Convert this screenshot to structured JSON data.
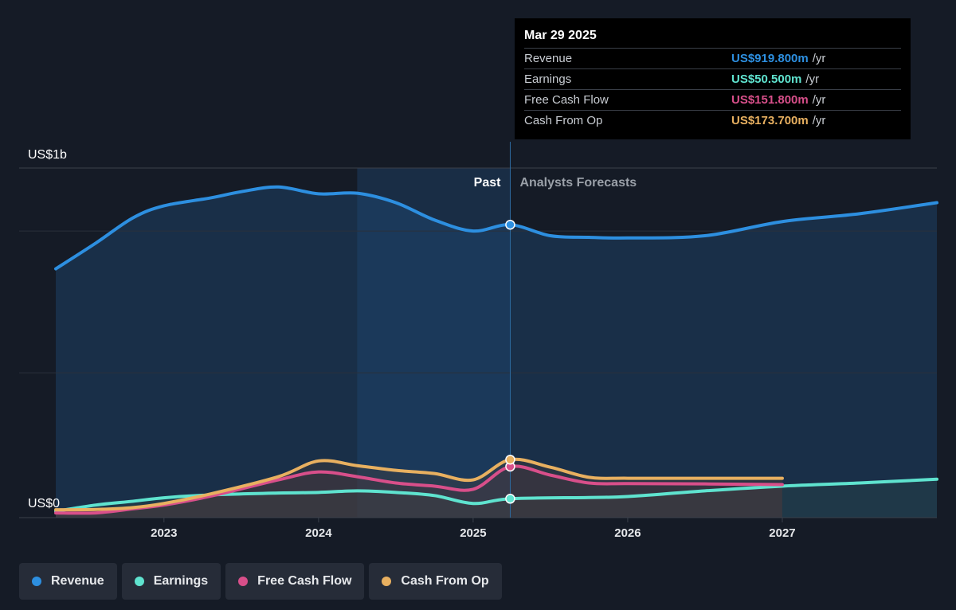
{
  "tooltip": {
    "date": "Mar 29 2025",
    "rows": [
      {
        "label": "Revenue",
        "value": "US$919.800m",
        "unit": "/yr",
        "color": "#2d8fe0"
      },
      {
        "label": "Earnings",
        "value": "US$50.500m",
        "unit": "/yr",
        "color": "#5fe3cf"
      },
      {
        "label": "Free Cash Flow",
        "value": "US$151.800m",
        "unit": "/yr",
        "color": "#d84f8a"
      },
      {
        "label": "Cash From Op",
        "value": "US$173.700m",
        "unit": "/yr",
        "color": "#e8b060"
      }
    ]
  },
  "legend": [
    {
      "label": "Revenue",
      "color": "#2d8fe0"
    },
    {
      "label": "Earnings",
      "color": "#5fe3cf"
    },
    {
      "label": "Free Cash Flow",
      "color": "#d84f8a"
    },
    {
      "label": "Cash From Op",
      "color": "#e8b060"
    }
  ],
  "chart_data": {
    "type": "line",
    "y_top_label": "US$1b",
    "y_zero_label": "US$0",
    "past_label": "Past",
    "forecast_label": "Analysts Forecasts",
    "xlim": [
      2022.3,
      2028.0
    ],
    "ylim": [
      -10,
      1100
    ],
    "x_ticks": [
      2023,
      2024,
      2025,
      2026,
      2027
    ],
    "x_tick_labels": [
      "2023",
      "2024",
      "2025",
      "2026",
      "2027"
    ],
    "forecast_start": 2025.24,
    "highlight_band": [
      2024.25,
      2025.24
    ],
    "series": [
      {
        "name": "Revenue",
        "color": "#2d8fe0",
        "marker_at": 2025.24,
        "points": [
          [
            2022.3,
            780
          ],
          [
            2022.56,
            862
          ],
          [
            2022.8,
            942
          ],
          [
            2023.0,
            980
          ],
          [
            2023.3,
            1005
          ],
          [
            2023.5,
            1025
          ],
          [
            2023.74,
            1040
          ],
          [
            2024.0,
            1018
          ],
          [
            2024.25,
            1020
          ],
          [
            2024.5,
            990
          ],
          [
            2024.75,
            935
          ],
          [
            2025.0,
            900
          ],
          [
            2025.24,
            920
          ],
          [
            2025.5,
            885
          ],
          [
            2025.75,
            880
          ],
          [
            2026.0,
            878
          ],
          [
            2026.5,
            885
          ],
          [
            2027.0,
            930
          ],
          [
            2027.5,
            955
          ],
          [
            2028.0,
            990
          ]
        ]
      },
      {
        "name": "Earnings",
        "color": "#5fe3cf",
        "marker_at": 2025.24,
        "points": [
          [
            2022.3,
            10
          ],
          [
            2022.56,
            30
          ],
          [
            2022.8,
            42
          ],
          [
            2023.0,
            53
          ],
          [
            2023.3,
            62
          ],
          [
            2023.74,
            68
          ],
          [
            2024.0,
            70
          ],
          [
            2024.25,
            75
          ],
          [
            2024.5,
            70
          ],
          [
            2024.75,
            60
          ],
          [
            2025.0,
            35
          ],
          [
            2025.24,
            50
          ],
          [
            2025.75,
            54
          ],
          [
            2026.0,
            57
          ],
          [
            2026.5,
            75
          ],
          [
            2027.0,
            90
          ],
          [
            2027.5,
            100
          ],
          [
            2028.0,
            112
          ]
        ]
      },
      {
        "name": "Free Cash Flow",
        "color": "#d84f8a",
        "marker_at": 2025.24,
        "points": [
          [
            2022.3,
            5
          ],
          [
            2022.56,
            5
          ],
          [
            2022.8,
            18
          ],
          [
            2023.0,
            30
          ],
          [
            2023.3,
            58
          ],
          [
            2023.74,
            110
          ],
          [
            2024.0,
            135
          ],
          [
            2024.25,
            120
          ],
          [
            2024.5,
            100
          ],
          [
            2024.75,
            90
          ],
          [
            2025.0,
            80
          ],
          [
            2025.24,
            152
          ],
          [
            2025.5,
            125
          ],
          [
            2025.75,
            100
          ],
          [
            2026.0,
            98
          ],
          [
            2026.5,
            97
          ],
          [
            2027.0,
            95
          ]
        ]
      },
      {
        "name": "Cash From Op",
        "color": "#e8b060",
        "marker_at": 2025.24,
        "points": [
          [
            2022.3,
            15
          ],
          [
            2022.56,
            16
          ],
          [
            2022.8,
            22
          ],
          [
            2023.0,
            35
          ],
          [
            2023.3,
            65
          ],
          [
            2023.74,
            120
          ],
          [
            2024.0,
            170
          ],
          [
            2024.25,
            155
          ],
          [
            2024.5,
            140
          ],
          [
            2024.75,
            130
          ],
          [
            2025.0,
            110
          ],
          [
            2025.24,
            174
          ],
          [
            2025.5,
            150
          ],
          [
            2025.75,
            118
          ],
          [
            2026.0,
            115
          ],
          [
            2026.5,
            115
          ],
          [
            2027.0,
            115
          ]
        ]
      }
    ]
  }
}
